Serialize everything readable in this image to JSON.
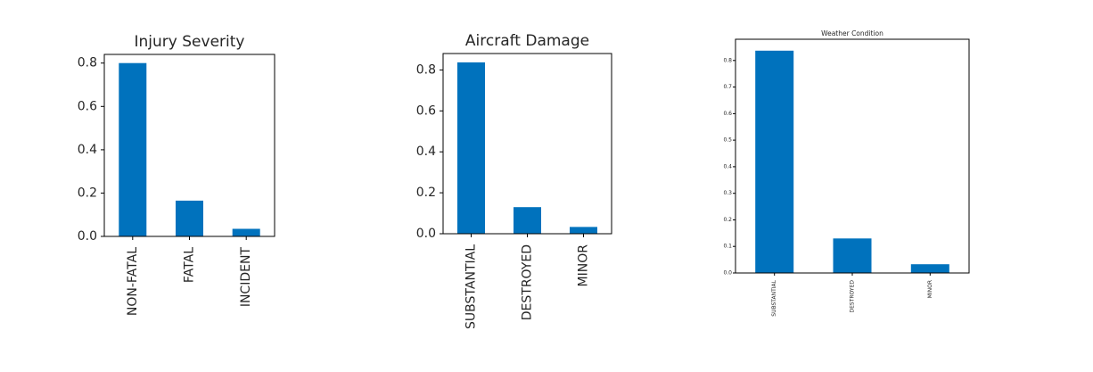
{
  "bar_color": "#0072bd",
  "chart_data": [
    {
      "type": "bar",
      "title": "Injury Severity",
      "categories": [
        "NON-FATAL",
        "FATAL",
        "INCIDENT"
      ],
      "values": [
        0.8,
        0.165,
        0.035
      ],
      "ylim": [
        0,
        0.84
      ],
      "yticks": [
        "0.0",
        "0.2",
        "0.4",
        "0.6",
        "0.8"
      ],
      "xlabel": "",
      "ylabel": "",
      "grid": false,
      "legend": "none"
    },
    {
      "type": "bar",
      "title": "Aircraft Damage",
      "categories": [
        "SUBSTANTIAL",
        "DESTROYED",
        "MINOR"
      ],
      "values": [
        0.837,
        0.13,
        0.033
      ],
      "ylim": [
        0,
        0.88
      ],
      "yticks": [
        "0.0",
        "0.2",
        "0.4",
        "0.6",
        "0.8"
      ],
      "xlabel": "",
      "ylabel": "",
      "grid": false,
      "legend": "none"
    },
    {
      "type": "bar",
      "title": "Weather Condition",
      "categories": [
        "SUBSTANTIAL",
        "DESTROYED",
        "MINOR"
      ],
      "values": [
        0.837,
        0.13,
        0.033
      ],
      "ylim": [
        0,
        0.88
      ],
      "yticks": [
        "0.0",
        "0.1",
        "0.2",
        "0.3",
        "0.4",
        "0.5",
        "0.6",
        "0.7",
        "0.8"
      ],
      "xlabel": "",
      "ylabel": "",
      "grid": false,
      "legend": "none"
    }
  ]
}
